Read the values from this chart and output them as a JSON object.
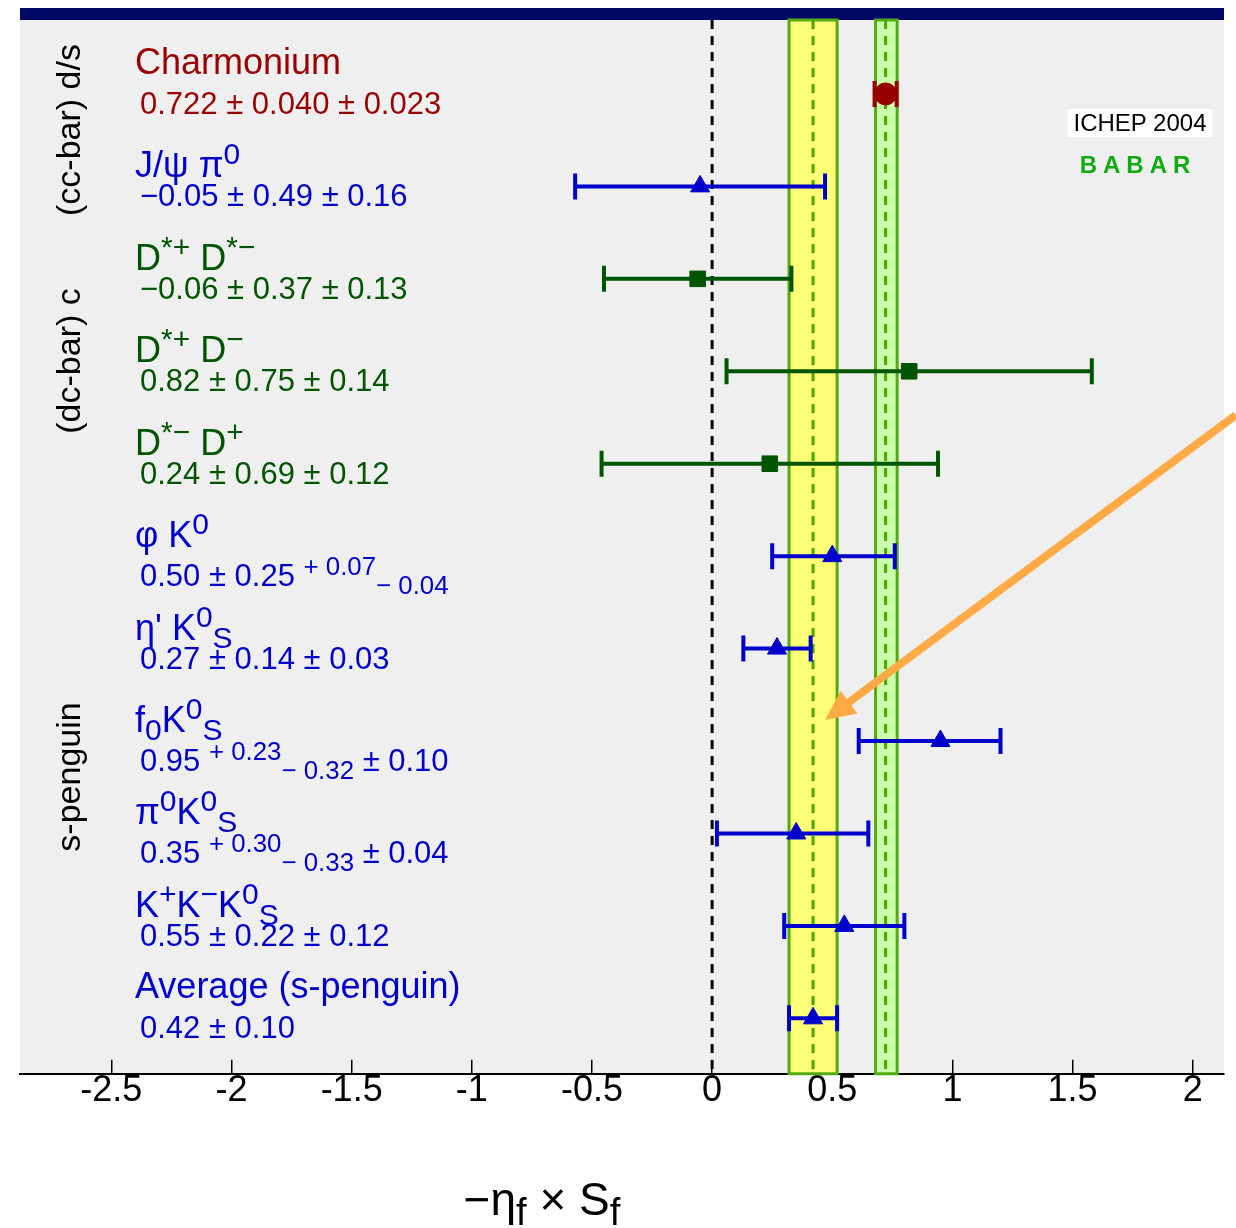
{
  "chart_data": {
    "type": "scatter",
    "orientation": "horizontal",
    "categories": [
      "Charmonium",
      "J/ψ π$^{0}$",
      "D$^{*+}$ D$^{*−}$",
      "D$^{*+}$ D$^{−}$",
      "D$^{*−}$ D$^{+}$",
      "φ K$^{0}$",
      "η' K$^{0}$$_{S}$",
      "f$_{0}$K$^{0}$$_{S}$",
      "π$^{0}$K$^{0}$$_{S}$",
      "K$^{+}$K$^{−}$K$^{0}$$_{S}$",
      "Average (s-penguin)"
    ],
    "series": [
      {
        "color": "#990000",
        "marker": "circle",
        "values": [
          0.722,
          null,
          null,
          null,
          null,
          null,
          null,
          null,
          null,
          null,
          null
        ],
        "errors": [
          0.046,
          null,
          null,
          null,
          null,
          null,
          null,
          null,
          null,
          null,
          null
        ]
      },
      {
        "color": "#0000cc",
        "marker": "triangle",
        "values": [
          null,
          -0.05,
          null,
          null,
          null,
          0.5,
          0.27,
          0.95,
          0.35,
          0.55,
          0.42
        ],
        "errors": [
          null,
          0.52,
          null,
          null,
          null,
          [
            0.25,
            0.76
          ],
          0.14,
          [
            0.61,
            1.2
          ],
          [
            0.02,
            0.65
          ],
          0.25,
          0.1
        ]
      },
      {
        "color": "#005500",
        "marker": "square",
        "values": [
          null,
          null,
          -0.06,
          0.82,
          0.24,
          null,
          null,
          null,
          null,
          null,
          null
        ],
        "errors": [
          null,
          null,
          0.39,
          0.76,
          0.7,
          null,
          null,
          null,
          null,
          null,
          null
        ]
      }
    ],
    "xlabel": "−η$_{f}$ × S$_{f}$",
    "xlim": [
      -2.88,
      2.13
    ],
    "xticks": [
      -2.5,
      -2,
      -1.5,
      -1,
      -0.5,
      0,
      0.5,
      1,
      1.5,
      2
    ],
    "bands": [
      {
        "axis": "x",
        "from": 0.32,
        "to": 0.52,
        "color": "#ffff77"
      },
      {
        "axis": "x",
        "from": 0.68,
        "to": 0.77,
        "color": "#ccffaa"
      }
    ],
    "ref_lines": [
      {
        "axis": "x",
        "value": 0,
        "color": "#000000",
        "line_style": "dashed"
      },
      {
        "axis": "x",
        "value": 0.42,
        "color": "#44aa00",
        "line_style": "dashed"
      },
      {
        "axis": "x",
        "value": 0.722,
        "color": "#44aa00",
        "line_style": "dashed"
      }
    ],
    "annotations": [
      "(cc-bar) d/s",
      "(dc-bar) c",
      "s-penguin",
      "ICHEP 2004",
      "BABAR",
      "0.722 ± 0.040 ± 0.023",
      "−0.05 ± 0.49 ± 0.16",
      "−0.06 ± 0.37 ± 0.13",
      "0.82 ± 0.75 ± 0.14",
      "0.24 ± 0.69 ± 0.12",
      "0.50 ± 0.25 $^{+ 0.07}$$_{− 0.04}$",
      "0.27 ± 0.14 ± 0.03",
      "0.95 $^{+ 0.23}$$_{− 0.32}$ ± 0.10",
      "0.35 $^{+ 0.30}$$_{− 0.33}$ ± 0.04",
      "0.55 ± 0.22 ± 0.12",
      "0.42 ± 0.10"
    ],
    "tick_labels": "x",
    "grid": false,
    "legend": false
  }
}
